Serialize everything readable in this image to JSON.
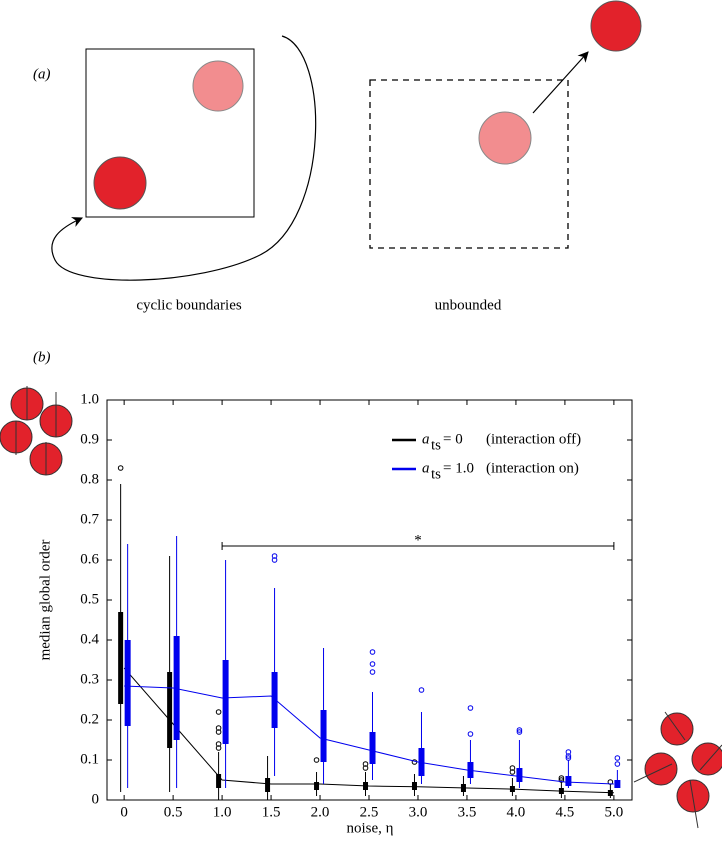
{
  "figure_labels": {
    "a": "(a)",
    "b": "(b)"
  },
  "panel_a": {
    "left_caption": "cyclic boundaries",
    "right_caption": "unbounded"
  },
  "chart_data": {
    "type": "box",
    "xlabel": "noise, η",
    "ylabel": "median global order",
    "x": [
      0,
      0.5,
      1,
      1.5,
      2,
      2.5,
      3,
      3.5,
      4,
      4.5,
      5
    ],
    "xlim": [
      -0.175,
      5.185
    ],
    "ylim": [
      0,
      1
    ],
    "xticks": [
      0,
      0.5,
      {
        "value": 1,
        "label": "1.0"
      },
      1.5,
      {
        "value": 2,
        "label": "2.0"
      },
      2.5,
      {
        "value": 3,
        "label": "3.0"
      },
      3.5,
      {
        "value": 4,
        "label": "4.0"
      },
      4.5,
      {
        "value": 5,
        "label": "5.0"
      }
    ],
    "yticks": [
      0,
      0.1,
      0.2,
      0.3,
      0.4,
      0.5,
      0.6,
      0.7,
      0.8,
      0.9,
      {
        "value": 1,
        "label": "1.0"
      }
    ],
    "legend_position": "upper right",
    "series": [
      {
        "symbol": "a",
        "subscript": "ts",
        "equals": "= 0",
        "name": "(interaction off)",
        "color": "#000000",
        "boxes": [
          {
            "whislo": 0.02,
            "q1": 0.24,
            "med": 0.33,
            "q3": 0.47,
            "whishi": 0.79,
            "fliers": [
              0.83
            ]
          },
          {
            "whislo": 0.02,
            "q1": 0.13,
            "med": 0.19,
            "q3": 0.32,
            "whishi": 0.61,
            "fliers": []
          },
          {
            "whislo": 0.0,
            "q1": 0.03,
            "med": 0.05,
            "q3": 0.065,
            "whishi": 0.12,
            "fliers": [
              0.13,
              0.14,
              0.17,
              0.18,
              0.22
            ]
          },
          {
            "whislo": 0.0,
            "q1": 0.02,
            "med": 0.04,
            "q3": 0.055,
            "whishi": 0.11,
            "fliers": []
          },
          {
            "whislo": 0.01,
            "q1": 0.025,
            "med": 0.04,
            "q3": 0.045,
            "whishi": 0.07,
            "fliers": [
              0.1
            ]
          },
          {
            "whislo": 0.01,
            "q1": 0.025,
            "med": 0.035,
            "q3": 0.045,
            "whishi": 0.07,
            "fliers": [
              0.08,
              0.09
            ]
          },
          {
            "whislo": 0.01,
            "q1": 0.025,
            "med": 0.033,
            "q3": 0.045,
            "whishi": 0.065,
            "fliers": [
              0.095
            ]
          },
          {
            "whislo": 0.01,
            "q1": 0.02,
            "med": 0.03,
            "q3": 0.04,
            "whishi": 0.06,
            "fliers": []
          },
          {
            "whislo": 0.01,
            "q1": 0.02,
            "med": 0.027,
            "q3": 0.035,
            "whishi": 0.055,
            "fliers": [
              0.07,
              0.08
            ]
          },
          {
            "whislo": 0.005,
            "q1": 0.015,
            "med": 0.022,
            "q3": 0.03,
            "whishi": 0.045,
            "fliers": [
              0.05,
              0.055
            ]
          },
          {
            "whislo": 0.005,
            "q1": 0.01,
            "med": 0.018,
            "q3": 0.025,
            "whishi": 0.04,
            "fliers": [
              0.045
            ]
          }
        ]
      },
      {
        "symbol": "a",
        "subscript": "ts",
        "equals": "= 1.0",
        "name": "(interaction on)",
        "color": "#0000ee",
        "boxes": [
          {
            "whislo": 0.03,
            "q1": 0.185,
            "med": 0.285,
            "q3": 0.4,
            "whishi": 0.64,
            "fliers": []
          },
          {
            "whislo": 0.03,
            "q1": 0.15,
            "med": 0.28,
            "q3": 0.41,
            "whishi": 0.66,
            "fliers": []
          },
          {
            "whislo": 0.03,
            "q1": 0.14,
            "med": 0.255,
            "q3": 0.35,
            "whishi": 0.6,
            "fliers": []
          },
          {
            "whislo": 0.06,
            "q1": 0.18,
            "med": 0.26,
            "q3": 0.32,
            "whishi": 0.53,
            "fliers": [
              0.6,
              0.61
            ]
          },
          {
            "whislo": 0.04,
            "q1": 0.095,
            "med": 0.155,
            "q3": 0.225,
            "whishi": 0.38,
            "fliers": []
          },
          {
            "whislo": 0.05,
            "q1": 0.09,
            "med": 0.125,
            "q3": 0.17,
            "whishi": 0.27,
            "fliers": [
              0.32,
              0.34,
              0.37
            ]
          },
          {
            "whislo": 0.04,
            "q1": 0.06,
            "med": 0.095,
            "q3": 0.13,
            "whishi": 0.22,
            "fliers": [
              0.275
            ]
          },
          {
            "whislo": 0.04,
            "q1": 0.055,
            "med": 0.075,
            "q3": 0.095,
            "whishi": 0.15,
            "fliers": [
              0.165,
              0.23
            ]
          },
          {
            "whislo": 0.03,
            "q1": 0.045,
            "med": 0.06,
            "q3": 0.08,
            "whishi": 0.15,
            "fliers": [
              0.17,
              0.175
            ]
          },
          {
            "whislo": 0.03,
            "q1": 0.035,
            "med": 0.045,
            "q3": 0.06,
            "whishi": 0.1,
            "fliers": [
              0.105,
              0.11,
              0.12
            ]
          },
          {
            "whislo": 0.03,
            "q1": 0.03,
            "med": 0.04,
            "q3": 0.05,
            "whishi": 0.075,
            "fliers": [
              0.09,
              0.105
            ]
          }
        ]
      }
    ],
    "significance": {
      "label": "*",
      "from": 1,
      "to": 5,
      "y": 0.635
    }
  }
}
